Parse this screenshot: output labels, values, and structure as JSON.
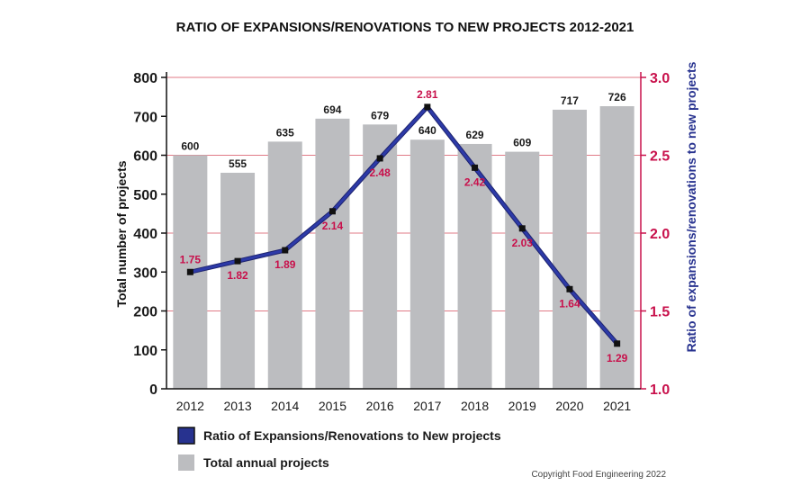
{
  "chart_data": {
    "type": "bar",
    "title": "RATIO OF EXPANSIONS/RENOVATIONS TO NEW PROJECTS 2012-2021",
    "categories": [
      "2012",
      "2013",
      "2014",
      "2015",
      "2016",
      "2017",
      "2018",
      "2019",
      "2020",
      "2021"
    ],
    "series": [
      {
        "name": "Total annual projects",
        "type": "bar",
        "axis": "left",
        "values": [
          600,
          555,
          635,
          694,
          679,
          640,
          629,
          609,
          717,
          726
        ],
        "labels": [
          "600",
          "555",
          "635",
          "694",
          "679",
          "640",
          "629",
          "609",
          "717",
          "726"
        ],
        "color": "#bcbdc0"
      },
      {
        "name": "Ratio of Expansions/Renovations to New projects",
        "type": "line",
        "axis": "right",
        "values": [
          1.75,
          1.82,
          1.89,
          2.14,
          2.48,
          2.81,
          2.42,
          2.03,
          1.64,
          1.29
        ],
        "labels": [
          "1.75",
          "1.82",
          "1.89",
          "2.14",
          "2.48",
          "2.81",
          "2.42",
          "2.03",
          "1.64",
          "1.29"
        ],
        "color": "#27328f"
      }
    ],
    "ylabel_left": "Total number of projects",
    "ylabel_right": "Ratio of expansions/renovations to new projects",
    "ylim_left": [
      0,
      800
    ],
    "ylim_right": [
      1.0,
      3.0
    ],
    "yticks_left": [
      "0",
      "100",
      "200",
      "300",
      "400",
      "500",
      "600",
      "700",
      "800"
    ],
    "yticks_right": [
      "1.0",
      "1.5",
      "2.0",
      "2.5",
      "3.0"
    ],
    "grid": "horizontal lines at right-axis ticks",
    "legend_position": "bottom-left",
    "colors": {
      "bars": "#bcbdc0",
      "line": "#27328f",
      "accent": "#c8104b",
      "gridline": "#e07a86"
    }
  },
  "copyright": "Copyright Food Engineering 2022"
}
